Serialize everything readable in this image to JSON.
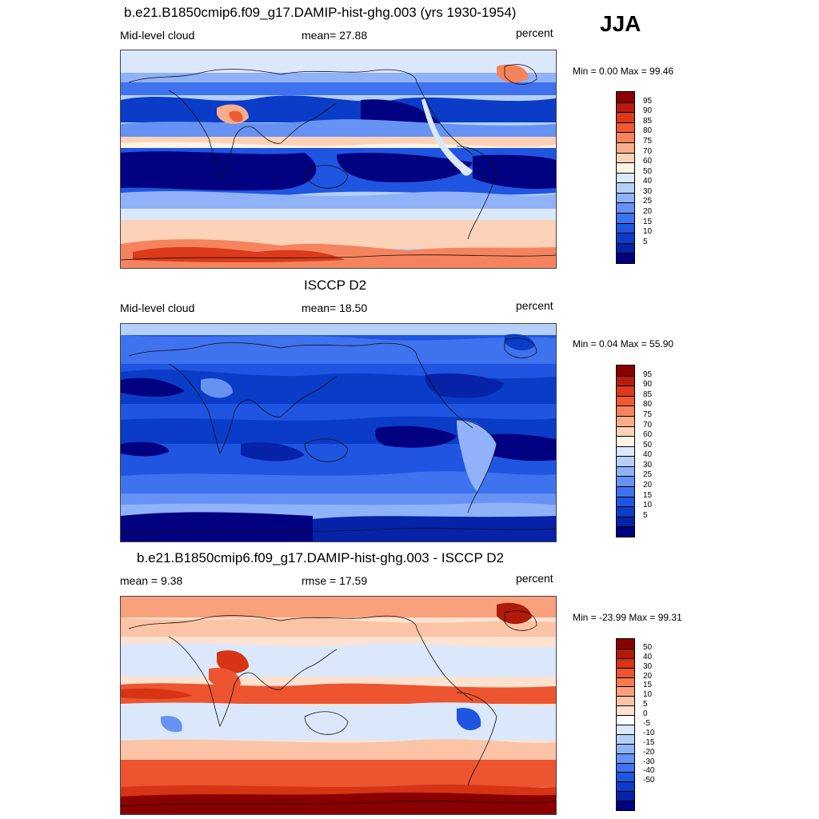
{
  "season": "JJA",
  "palettes": {
    "abs": [
      "#000080",
      "#0522a8",
      "#0a3cc8",
      "#1f55e0",
      "#3f72ee",
      "#6692f4",
      "#8fb2f8",
      "#b4cff8",
      "#dbe8fb",
      "#fff3e6",
      "#fcd2b8",
      "#f9ad8a",
      "#f5845e",
      "#ee5a35",
      "#db3a1b",
      "#b81c0b",
      "#8a0000"
    ],
    "diff": [
      "#000080",
      "#0522a8",
      "#0a3cc8",
      "#1f55e0",
      "#3f72ee",
      "#6692f4",
      "#8fb2f8",
      "#b4cff8",
      "#dbe8fb",
      "#ffffff",
      "#fde2d0",
      "#fcc4a6",
      "#f9a07c",
      "#f57b52",
      "#ec5530",
      "#d63414",
      "#b01a08",
      "#8a0000"
    ]
  },
  "panels": [
    {
      "title": "b.e21.B1850cmip6.f09_g17.DAMIP-hist-ghg.003 (yrs 1930-1954)",
      "left_label": "Mid-level cloud",
      "center_label": "mean=  27.88",
      "right_label": "percent",
      "minmax": "Min =   0.00 Max =  99.46",
      "colorbar_ticks": [
        "95",
        "90",
        "85",
        "80",
        "75",
        "70",
        "60",
        "50",
        "40",
        "30",
        "25",
        "20",
        "15",
        "10",
        "5"
      ]
    },
    {
      "title": "ISCCP D2",
      "left_label": "Mid-level cloud",
      "center_label": "mean=  18.50",
      "right_label": "percent",
      "minmax": "Min =   0.04 Max =  55.90",
      "colorbar_ticks": [
        "95",
        "90",
        "85",
        "80",
        "75",
        "70",
        "60",
        "50",
        "40",
        "30",
        "25",
        "20",
        "15",
        "10",
        "5"
      ]
    },
    {
      "title": "b.e21.B1850cmip6.f09_g17.DAMIP-hist-ghg.003 - ISCCP D2",
      "left_label": "mean =   9.38",
      "center_label": "rmse =  17.59",
      "right_label": "percent",
      "minmax": "Min = -23.99 Max =  99.31",
      "colorbar_ticks": [
        "50",
        "40",
        "30",
        "20",
        "15",
        "10",
        "5",
        "0",
        "-5",
        "-10",
        "-15",
        "-20",
        "-30",
        "-40",
        "-50"
      ]
    }
  ]
}
